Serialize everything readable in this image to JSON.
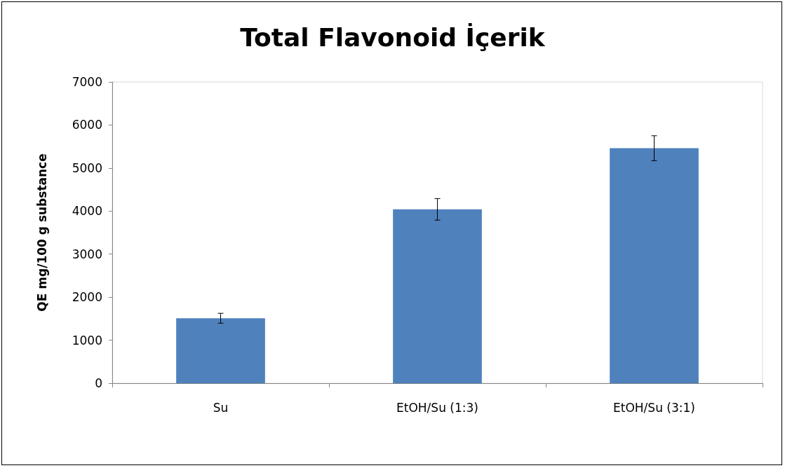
{
  "chart_data": {
    "type": "bar",
    "title": "Total Flavonoid İçerik",
    "ylabel": "QE mg/100 g substance",
    "categories": [
      "Su",
      "EtOH/Su (1:3)",
      "EtOH/Su (3:1)"
    ],
    "values": [
      1510,
      4040,
      5460
    ],
    "errors": [
      115,
      250,
      290
    ],
    "color": "#4f81bd",
    "ylim": [
      0,
      7000
    ],
    "yticks": [
      0,
      1000,
      2000,
      3000,
      4000,
      5000,
      6000,
      7000
    ],
    "grid": false
  }
}
